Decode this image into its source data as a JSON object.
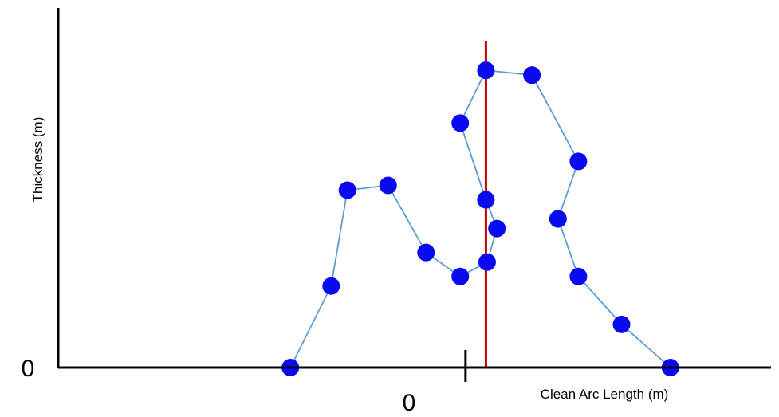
{
  "chart_data": {
    "type": "line",
    "xlabel": "Clean Arc Length (m)",
    "ylabel": "Thickness (m)",
    "x_tick_labels": [
      "0"
    ],
    "y_tick_labels": [
      "0"
    ],
    "grid": false,
    "legend": "none",
    "x_range": [
      -10,
      7.5
    ],
    "y_range": [
      0,
      7.5
    ],
    "series": [
      {
        "points": [
          [
            -4.3,
            0
          ],
          [
            -3.3,
            1.7
          ],
          [
            -2.9,
            3.7
          ],
          [
            -1.9,
            3.8
          ],
          [
            -0.97,
            2.4
          ],
          [
            -0.13,
            1.9
          ],
          [
            0.53,
            2.2
          ],
          [
            0.77,
            2.9
          ],
          [
            0.5,
            3.5
          ],
          [
            -0.13,
            5.1
          ],
          [
            0.5,
            6.2
          ],
          [
            1.63,
            6.1
          ],
          [
            2.77,
            4.3
          ],
          [
            2.27,
            3.1
          ],
          [
            2.77,
            1.9
          ],
          [
            3.83,
            0.9
          ],
          [
            5.03,
            0
          ]
        ]
      }
    ],
    "vertical_reference_x": 0.5,
    "colors": {
      "line": "#5b9bd5",
      "marker": "#0a0af0",
      "reference_line": "#c00000",
      "axis": "#000000"
    }
  }
}
